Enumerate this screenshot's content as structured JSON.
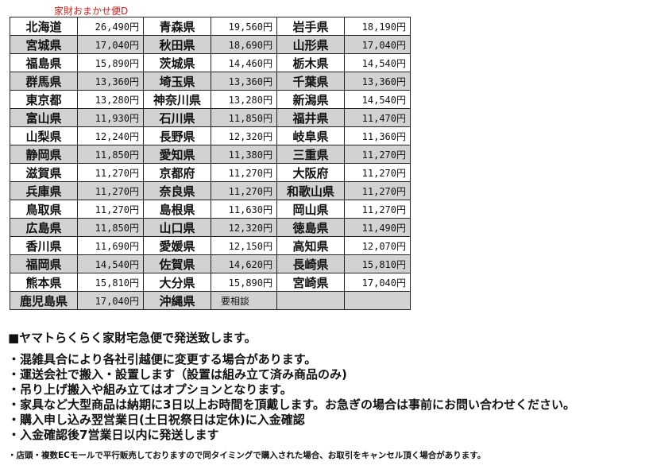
{
  "title": "家財おまかせ便D",
  "rows": [
    [
      [
        "北海道",
        "26,490円"
      ],
      [
        "青森県",
        "19,560円"
      ],
      [
        "岩手県",
        "18,190円"
      ]
    ],
    [
      [
        "宮城県",
        "17,040円"
      ],
      [
        "秋田県",
        "18,690円"
      ],
      [
        "山形県",
        "17,040円"
      ]
    ],
    [
      [
        "福島県",
        "15,890円"
      ],
      [
        "茨城県",
        "14,460円"
      ],
      [
        "栃木県",
        "14,540円"
      ]
    ],
    [
      [
        "群馬県",
        "13,360円"
      ],
      [
        "埼玉県",
        "13,360円"
      ],
      [
        "千葉県",
        "13,360円"
      ]
    ],
    [
      [
        "東京都",
        "13,280円"
      ],
      [
        "神奈川県",
        "13,280円"
      ],
      [
        "新潟県",
        "14,540円"
      ]
    ],
    [
      [
        "富山県",
        "11,930円"
      ],
      [
        "石川県",
        "11,850円"
      ],
      [
        "福井県",
        "11,470円"
      ]
    ],
    [
      [
        "山梨県",
        "12,240円"
      ],
      [
        "長野県",
        "12,320円"
      ],
      [
        "岐阜県",
        "11,360円"
      ]
    ],
    [
      [
        "静岡県",
        "11,850円"
      ],
      [
        "愛知県",
        "11,380円"
      ],
      [
        "三重県",
        "11,270円"
      ]
    ],
    [
      [
        "滋賀県",
        "11,270円"
      ],
      [
        "京都府",
        "11,270円"
      ],
      [
        "大阪府",
        "11,270円"
      ]
    ],
    [
      [
        "兵庫県",
        "11,270円"
      ],
      [
        "奈良県",
        "11,270円"
      ],
      [
        "和歌山県",
        "11,270円"
      ]
    ],
    [
      [
        "鳥取県",
        "11,270円"
      ],
      [
        "島根県",
        "11,630円"
      ],
      [
        "岡山県",
        "11,270円"
      ]
    ],
    [
      [
        "広島県",
        "11,850円"
      ],
      [
        "山口県",
        "12,320円"
      ],
      [
        "徳島県",
        "11,490円"
      ]
    ],
    [
      [
        "香川県",
        "11,690円"
      ],
      [
        "愛媛県",
        "12,150円"
      ],
      [
        "高知県",
        "12,070円"
      ]
    ],
    [
      [
        "福岡県",
        "14,540円"
      ],
      [
        "佐賀県",
        "14,620円"
      ],
      [
        "長崎県",
        "15,810円"
      ]
    ],
    [
      [
        "熊本県",
        "15,810円"
      ],
      [
        "大分県",
        "15,890円"
      ],
      [
        "宮崎県",
        "17,040円"
      ]
    ],
    [
      [
        "鹿児島県",
        "17,040円"
      ],
      [
        "沖縄県",
        "要相談"
      ],
      [
        "",
        ""
      ]
    ]
  ],
  "notes": {
    "heading": "■ヤマトらくらく家財宅急便で発送致します。",
    "items": [
      "・混雑具合により各社引越便に変更する場合があります。",
      "・運送会社で搬入・設置します（設置は組み立て済み商品のみ)",
      "・吊り上げ搬入や組み立てはオプションとなります。",
      "・家具など大型商品は納期に3日以上お時間を頂戴します。お急ぎの場合は事前にお問い合わせください。",
      "・購入申し込み翌営業日(土日祝祭日は定休)に入金確認",
      "・入金確認後7営業日以内に発送します"
    ],
    "footnote": "・店頭・複数ECモールで平行販売しておりますので同タイミングで購入された場合、お取引をキャンセル頂く場合があります。"
  }
}
